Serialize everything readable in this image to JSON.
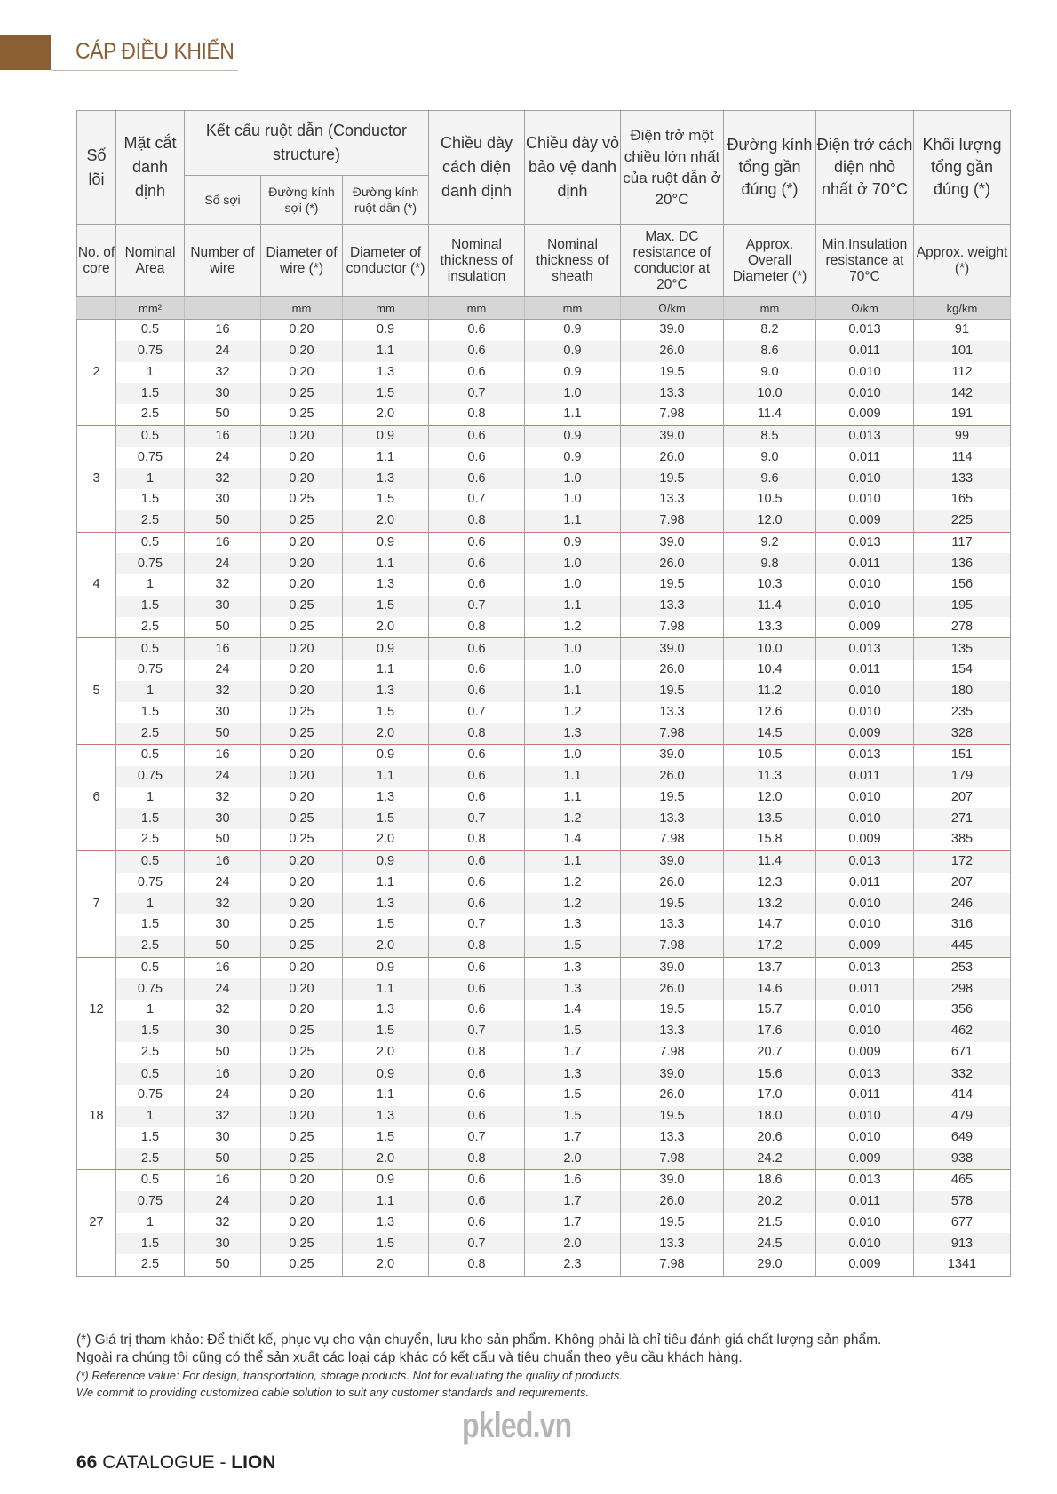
{
  "header": {
    "title": "CÁP ĐIỀU KHIỂN",
    "brand_color": "#8b5e34"
  },
  "table": {
    "head_vi": {
      "core": "Số lõi",
      "area": "Mặt cắt danh định",
      "structure": "Kết cấu ruột dẫn (Conductor structure)",
      "wires": "Số sợi",
      "wire_dia": "Đường kính sợi (*)",
      "cond_dia": "Đường kính ruột dẫn (*)",
      "insulation": "Chiều dày cách điện danh định",
      "sheath": "Chiều dày vỏ bảo vệ danh định",
      "resistance": "Điện trở một chiều lớn nhất của ruột dẫn ở 20°C",
      "overall_dia": "Đường kính tổng gần đúng (*)",
      "ins_resistance": "Điện trở cách điện nhỏ nhất ở 70°C",
      "weight": "Khối lượng tổng gần đúng (*)"
    },
    "head_en": [
      "No. of core",
      "Nominal Area",
      "Number of wire",
      "Diameter of wire (*)",
      "Diameter of conductor (*)",
      "Nominal thickness of insulation",
      "Nominal thickness of sheath",
      "Max. DC resistance of conductor at 20°C",
      "Approx. Overall Diameter (*)",
      "Min.Insulation resistance at 70°C",
      "Approx. weight (*)"
    ],
    "units": [
      "",
      "mm²",
      "",
      "mm",
      "mm",
      "mm",
      "mm",
      "Ω/km",
      "mm",
      "Ω/km",
      "kg/km"
    ],
    "groups": [
      {
        "core": "2",
        "rows": [
          [
            "0.5",
            "16",
            "0.20",
            "0.9",
            "0.6",
            "0.9",
            "39.0",
            "8.2",
            "0.013",
            "91"
          ],
          [
            "0.75",
            "24",
            "0.20",
            "1.1",
            "0.6",
            "0.9",
            "26.0",
            "8.6",
            "0.011",
            "101"
          ],
          [
            "1",
            "32",
            "0.20",
            "1.3",
            "0.6",
            "0.9",
            "19.5",
            "9.0",
            "0.010",
            "112"
          ],
          [
            "1.5",
            "30",
            "0.25",
            "1.5",
            "0.7",
            "1.0",
            "13.3",
            "10.0",
            "0.010",
            "142"
          ],
          [
            "2.5",
            "50",
            "0.25",
            "2.0",
            "0.8",
            "1.1",
            "7.98",
            "11.4",
            "0.009",
            "191"
          ]
        ]
      },
      {
        "core": "3",
        "rows": [
          [
            "0.5",
            "16",
            "0.20",
            "0.9",
            "0.6",
            "0.9",
            "39.0",
            "8.5",
            "0.013",
            "99"
          ],
          [
            "0.75",
            "24",
            "0.20",
            "1.1",
            "0.6",
            "0.9",
            "26.0",
            "9.0",
            "0.011",
            "114"
          ],
          [
            "1",
            "32",
            "0.20",
            "1.3",
            "0.6",
            "1.0",
            "19.5",
            "9.6",
            "0.010",
            "133"
          ],
          [
            "1.5",
            "30",
            "0.25",
            "1.5",
            "0.7",
            "1.0",
            "13.3",
            "10.5",
            "0.010",
            "165"
          ],
          [
            "2.5",
            "50",
            "0.25",
            "2.0",
            "0.8",
            "1.1",
            "7.98",
            "12.0",
            "0.009",
            "225"
          ]
        ]
      },
      {
        "core": "4",
        "rows": [
          [
            "0.5",
            "16",
            "0.20",
            "0.9",
            "0.6",
            "0.9",
            "39.0",
            "9.2",
            "0.013",
            "117"
          ],
          [
            "0.75",
            "24",
            "0.20",
            "1.1",
            "0.6",
            "1.0",
            "26.0",
            "9.8",
            "0.011",
            "136"
          ],
          [
            "1",
            "32",
            "0.20",
            "1.3",
            "0.6",
            "1.0",
            "19.5",
            "10.3",
            "0.010",
            "156"
          ],
          [
            "1.5",
            "30",
            "0.25",
            "1.5",
            "0.7",
            "1.1",
            "13.3",
            "11.4",
            "0.010",
            "195"
          ],
          [
            "2.5",
            "50",
            "0.25",
            "2.0",
            "0.8",
            "1.2",
            "7.98",
            "13.3",
            "0.009",
            "278"
          ]
        ]
      },
      {
        "core": "5",
        "rows": [
          [
            "0.5",
            "16",
            "0.20",
            "0.9",
            "0.6",
            "1.0",
            "39.0",
            "10.0",
            "0.013",
            "135"
          ],
          [
            "0.75",
            "24",
            "0.20",
            "1.1",
            "0.6",
            "1.0",
            "26.0",
            "10.4",
            "0.011",
            "154"
          ],
          [
            "1",
            "32",
            "0.20",
            "1.3",
            "0.6",
            "1.1",
            "19.5",
            "11.2",
            "0.010",
            "180"
          ],
          [
            "1.5",
            "30",
            "0.25",
            "1.5",
            "0.7",
            "1.2",
            "13.3",
            "12.6",
            "0.010",
            "235"
          ],
          [
            "2.5",
            "50",
            "0.25",
            "2.0",
            "0.8",
            "1.3",
            "7.98",
            "14.5",
            "0.009",
            "328"
          ]
        ]
      },
      {
        "core": "6",
        "rows": [
          [
            "0.5",
            "16",
            "0.20",
            "0.9",
            "0.6",
            "1.0",
            "39.0",
            "10.5",
            "0.013",
            "151"
          ],
          [
            "0.75",
            "24",
            "0.20",
            "1.1",
            "0.6",
            "1.1",
            "26.0",
            "11.3",
            "0.011",
            "179"
          ],
          [
            "1",
            "32",
            "0.20",
            "1.3",
            "0.6",
            "1.1",
            "19.5",
            "12.0",
            "0.010",
            "207"
          ],
          [
            "1.5",
            "30",
            "0.25",
            "1.5",
            "0.7",
            "1.2",
            "13.3",
            "13.5",
            "0.010",
            "271"
          ],
          [
            "2.5",
            "50",
            "0.25",
            "2.0",
            "0.8",
            "1.4",
            "7.98",
            "15.8",
            "0.009",
            "385"
          ]
        ]
      },
      {
        "core": "7",
        "rows": [
          [
            "0.5",
            "16",
            "0.20",
            "0.9",
            "0.6",
            "1.1",
            "39.0",
            "11.4",
            "0.013",
            "172"
          ],
          [
            "0.75",
            "24",
            "0.20",
            "1.1",
            "0.6",
            "1.2",
            "26.0",
            "12.3",
            "0.011",
            "207"
          ],
          [
            "1",
            "32",
            "0.20",
            "1.3",
            "0.6",
            "1.2",
            "19.5",
            "13.2",
            "0.010",
            "246"
          ],
          [
            "1.5",
            "30",
            "0.25",
            "1.5",
            "0.7",
            "1.3",
            "13.3",
            "14.7",
            "0.010",
            "316"
          ],
          [
            "2.5",
            "50",
            "0.25",
            "2.0",
            "0.8",
            "1.5",
            "7.98",
            "17.2",
            "0.009",
            "445"
          ]
        ]
      },
      {
        "core": "12",
        "rows": [
          [
            "0.5",
            "16",
            "0.20",
            "0.9",
            "0.6",
            "1.3",
            "39.0",
            "13.7",
            "0.013",
            "253"
          ],
          [
            "0.75",
            "24",
            "0.20",
            "1.1",
            "0.6",
            "1.3",
            "26.0",
            "14.6",
            "0.011",
            "298"
          ],
          [
            "1",
            "32",
            "0.20",
            "1.3",
            "0.6",
            "1.4",
            "19.5",
            "15.7",
            "0.010",
            "356"
          ],
          [
            "1.5",
            "30",
            "0.25",
            "1.5",
            "0.7",
            "1.5",
            "13.3",
            "17.6",
            "0.010",
            "462"
          ],
          [
            "2.5",
            "50",
            "0.25",
            "2.0",
            "0.8",
            "1.7",
            "7.98",
            "20.7",
            "0.009",
            "671"
          ]
        ]
      },
      {
        "core": "18",
        "rows": [
          [
            "0.5",
            "16",
            "0.20",
            "0.9",
            "0.6",
            "1.3",
            "39.0",
            "15.6",
            "0.013",
            "332"
          ],
          [
            "0.75",
            "24",
            "0.20",
            "1.1",
            "0.6",
            "1.5",
            "26.0",
            "17.0",
            "0.011",
            "414"
          ],
          [
            "1",
            "32",
            "0.20",
            "1.3",
            "0.6",
            "1.5",
            "19.5",
            "18.0",
            "0.010",
            "479"
          ],
          [
            "1.5",
            "30",
            "0.25",
            "1.5",
            "0.7",
            "1.7",
            "13.3",
            "20.6",
            "0.010",
            "649"
          ],
          [
            "2.5",
            "50",
            "0.25",
            "2.0",
            "0.8",
            "2.0",
            "7.98",
            "24.2",
            "0.009",
            "938"
          ]
        ]
      },
      {
        "core": "27",
        "rows": [
          [
            "0.5",
            "16",
            "0.20",
            "0.9",
            "0.6",
            "1.6",
            "39.0",
            "18.6",
            "0.013",
            "465"
          ],
          [
            "0.75",
            "24",
            "0.20",
            "1.1",
            "0.6",
            "1.7",
            "26.0",
            "20.2",
            "0.011",
            "578"
          ],
          [
            "1",
            "32",
            "0.20",
            "1.3",
            "0.6",
            "1.7",
            "19.5",
            "21.5",
            "0.010",
            "677"
          ],
          [
            "1.5",
            "30",
            "0.25",
            "1.5",
            "0.7",
            "2.0",
            "13.3",
            "24.5",
            "0.010",
            "913"
          ],
          [
            "2.5",
            "50",
            "0.25",
            "2.0",
            "0.8",
            "2.3",
            "7.98",
            "29.0",
            "0.009",
            "1341"
          ]
        ]
      }
    ]
  },
  "notes": {
    "vi_1": "(*) Giá trị tham khảo: Để thiết kế, phục vụ cho vận chuyển, lưu kho sản phẩm. Không phải là chỉ tiêu đánh giá chất lượng sản phẩm.",
    "vi_2": "Ngoài ra chúng tôi cũng có thể sản xuất các loại cáp khác có kết cấu và tiêu chuẩn theo yêu cầu khách hàng.",
    "en_1": "(*) Reference value: For design, transportation, storage products. Not for evaluating the quality of products.",
    "en_2": "We commit to providing customized cable solution to suit any customer standards and requirements."
  },
  "watermark": "pkled.vn",
  "footer": {
    "page": "66",
    "text": "CATALOGUE - ",
    "brand": "LION"
  }
}
